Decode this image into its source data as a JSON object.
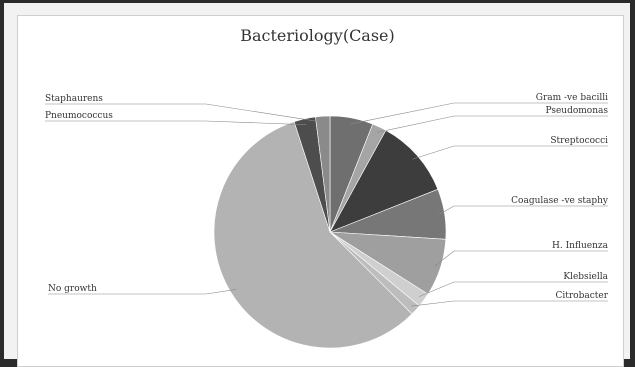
{
  "chart_data": {
    "type": "pie",
    "title": "Bacteriology(Case)",
    "slices": [
      {
        "label": "Gram -ve bacilli",
        "value": 6,
        "color": "#6f6f6f"
      },
      {
        "label": "Pseudomonas",
        "value": 2,
        "color": "#a5a5a5"
      },
      {
        "label": "Streptococci",
        "value": 11,
        "color": "#3d3d3d"
      },
      {
        "label": "Coagulase -ve staphy",
        "value": 7,
        "color": "#777777"
      },
      {
        "label": "H. Influenza",
        "value": 8,
        "color": "#9f9f9f"
      },
      {
        "label": "Klebsiella",
        "value": 2,
        "color": "#cfcfcf"
      },
      {
        "label": "Citrobacter",
        "value": 1.5,
        "color": "#bdbdbd"
      },
      {
        "label": "No growth",
        "value": 57.5,
        "color": "#b3b3b3"
      },
      {
        "label": "Pneumococcus",
        "value": 3,
        "color": "#4d4d4d"
      },
      {
        "label": "Staphaurens",
        "value": 2,
        "color": "#8a8a8a"
      }
    ],
    "legend": "none"
  }
}
